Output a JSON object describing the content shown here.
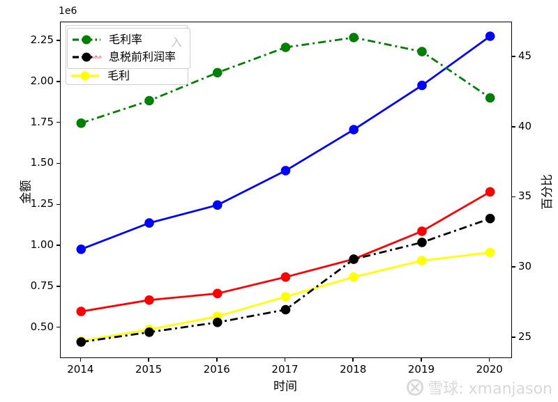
{
  "figure": {
    "watermark": {
      "logo_icon": "xueqiu-circle-x-logo",
      "text": "雪球: xmanjason",
      "color": "#d9d9d9"
    }
  },
  "chart_data": {
    "type": "line",
    "x": [
      2014,
      2015,
      2016,
      2017,
      2018,
      2019,
      2020
    ],
    "x_axis": {
      "label": "时间",
      "ticks": [
        "2014",
        "2015",
        "2016",
        "2017",
        "2018",
        "2019",
        "2020"
      ],
      "tick_values": [
        2014,
        2015,
        2016,
        2017,
        2018,
        2019,
        2020
      ],
      "range": [
        2013.7,
        2020.31
      ],
      "grid": false
    },
    "left_axis": {
      "label": "金额",
      "offset_text": "1e6",
      "unit_scale": 1000000,
      "ticks": [
        "0.50",
        "0.75",
        "1.00",
        "1.25",
        "1.50",
        "1.75",
        "2.00",
        "2.25"
      ],
      "tick_values": [
        0.5,
        0.75,
        1.0,
        1.25,
        1.5,
        1.75,
        2.0,
        2.25
      ],
      "range": [
        0.32,
        2.365
      ]
    },
    "right_axis": {
      "label": "百分比",
      "ticks": [
        "25",
        "30",
        "35",
        "40",
        "45"
      ],
      "tick_values": [
        25,
        30,
        35,
        40,
        45
      ],
      "range": [
        23.6,
        47.49
      ]
    },
    "series": [
      {
        "key": "blue-line",
        "legend_label": "",
        "axis": "left",
        "color": "#0000ff",
        "linestyle": "solid",
        "marker": "circle",
        "values": [
          0.98,
          1.14,
          1.25,
          1.46,
          1.71,
          1.98,
          2.28
        ]
      },
      {
        "key": "red-line",
        "legend_label": "",
        "axis": "left",
        "color": "#ff0000",
        "linestyle": "solid",
        "marker": "circle",
        "values": [
          0.6,
          0.67,
          0.71,
          0.81,
          0.92,
          1.09,
          1.33
        ]
      },
      {
        "key": "gross-profit",
        "legend_label": "毛利",
        "axis": "left",
        "color": "#ffff00",
        "linestyle": "solid",
        "marker": "circle",
        "values": [
          0.42,
          0.49,
          0.57,
          0.69,
          0.81,
          0.91,
          0.96
        ]
      },
      {
        "key": "gross-margin",
        "legend_label": "毛利率",
        "axis": "right",
        "color": "#008000",
        "linestyle": "dashdot",
        "marker": "circle",
        "values": [
          40.3,
          41.9,
          43.9,
          45.7,
          46.4,
          45.4,
          42.1
        ]
      },
      {
        "key": "ebit-margin",
        "legend_label": "息税前利润率",
        "axis": "right",
        "color": "#000000",
        "linestyle": "dashdot",
        "marker": "circle",
        "values": [
          24.7,
          25.4,
          26.1,
          27.0,
          30.6,
          31.8,
          33.5
        ]
      }
    ],
    "legend": {
      "position": "upper-left",
      "entries": [
        {
          "label": "毛利率",
          "color": "#008000",
          "linestyle": "dashdot"
        },
        {
          "label": "息税前利润率",
          "color": "#000000",
          "linestyle": "dashdot"
        },
        {
          "label": "毛利",
          "color": "#ffff00",
          "linestyle": "solid"
        }
      ],
      "ghost_text": "入"
    }
  }
}
